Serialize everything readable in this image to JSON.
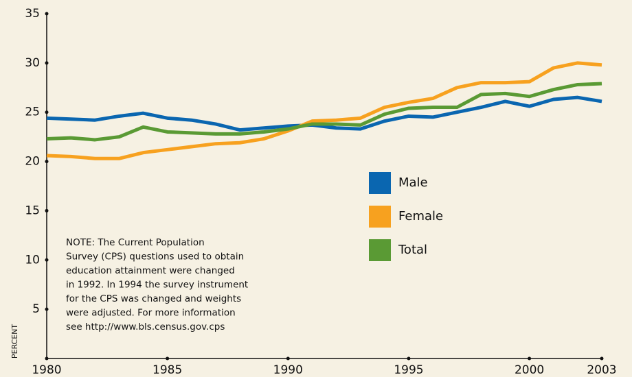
{
  "chart_data": {
    "type": "line",
    "y_label": "PERCENT",
    "x": [
      1980,
      1981,
      1982,
      1983,
      1984,
      1985,
      1986,
      1987,
      1988,
      1989,
      1990,
      1991,
      1992,
      1993,
      1994,
      1995,
      1996,
      1997,
      1998,
      1999,
      2000,
      2001,
      2002,
      2003
    ],
    "series": [
      {
        "name": "Male",
        "color": "#0a66b0",
        "values": [
          24.4,
          24.3,
          24.2,
          24.6,
          24.9,
          24.4,
          24.2,
          23.8,
          23.2,
          23.4,
          23.6,
          23.7,
          23.4,
          23.3,
          24.1,
          24.6,
          24.5,
          25.0,
          25.5,
          26.1,
          25.6,
          26.3,
          26.5,
          26.1
        ]
      },
      {
        "name": "Female",
        "color": "#f7a11f",
        "values": [
          20.6,
          20.5,
          20.3,
          20.3,
          20.9,
          21.2,
          21.5,
          21.8,
          21.9,
          22.3,
          23.1,
          24.1,
          24.2,
          24.4,
          25.5,
          26.0,
          26.4,
          27.5,
          28.0,
          28.0,
          28.1,
          29.5,
          30.0,
          29.8
        ]
      },
      {
        "name": "Total",
        "color": "#5a9a34",
        "values": [
          22.3,
          22.4,
          22.2,
          22.5,
          23.5,
          23.0,
          22.9,
          22.8,
          22.8,
          23.0,
          23.3,
          23.8,
          23.8,
          23.7,
          24.8,
          25.4,
          25.5,
          25.5,
          26.8,
          26.9,
          26.6,
          27.3,
          27.8,
          27.9
        ]
      }
    ],
    "xlim": [
      1980,
      2003
    ],
    "xticks": [
      1980,
      1985,
      1990,
      1995,
      2000,
      2003
    ],
    "ylim": [
      0,
      35
    ],
    "yticks": [
      5,
      10,
      15,
      20,
      25,
      30,
      35
    ],
    "annotation": [
      "NOTE: The Current Population",
      "Survey (CPS) questions used to obtain",
      "education attainment were changed",
      "in 1992. In 1994 the survey instrument",
      "for the CPS was changed and weights",
      "were adjusted. For more information",
      "see http://www.bls.census.gov.cps"
    ]
  }
}
